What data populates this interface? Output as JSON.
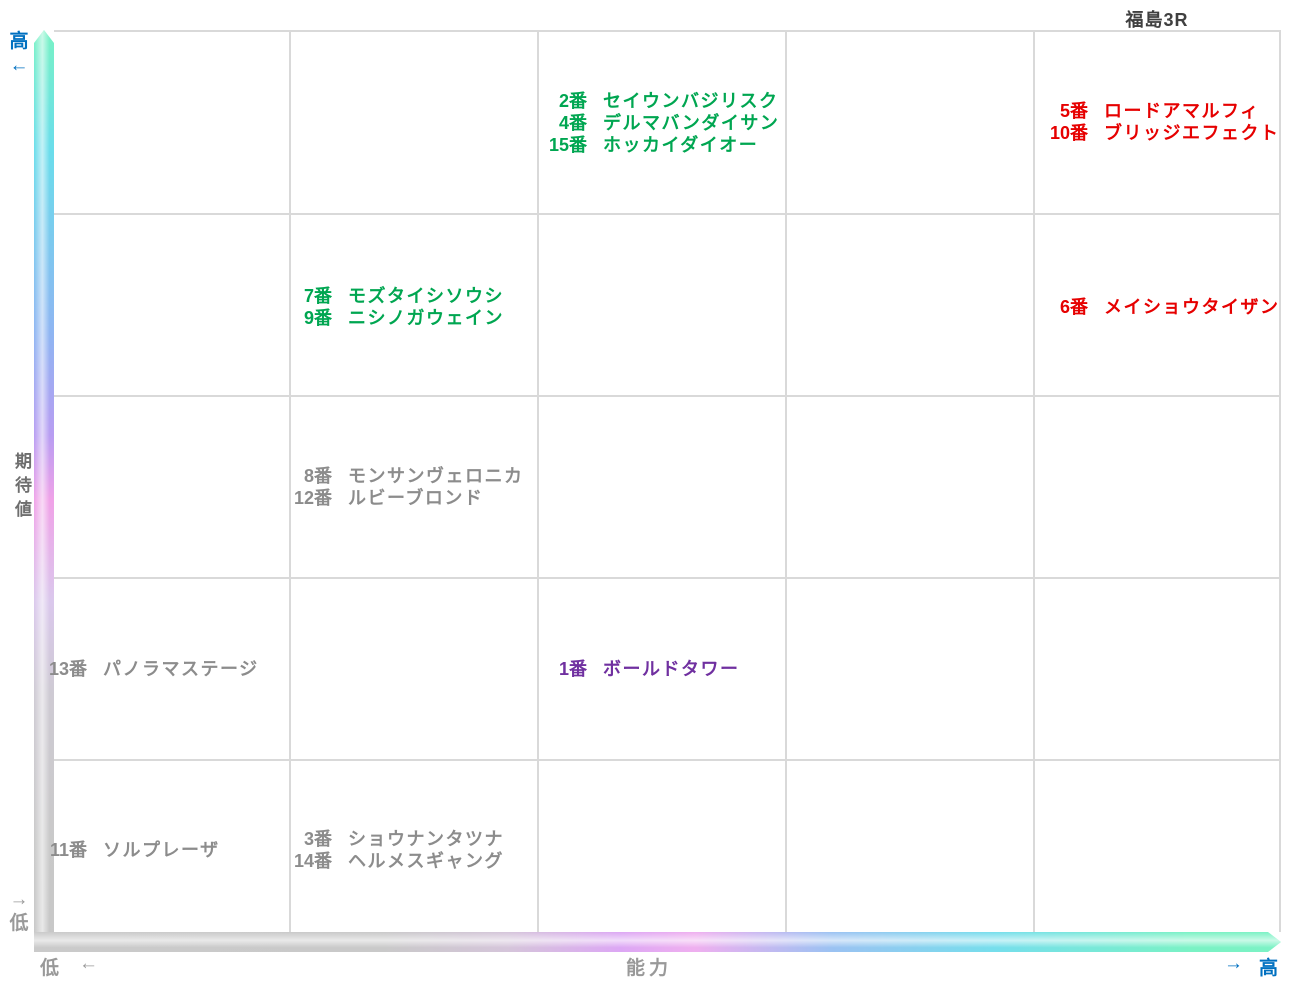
{
  "title": "福島3R",
  "axes": {
    "y": {
      "label": "期待値",
      "high_label": "高",
      "high_arrow": "←",
      "low_label": "低",
      "low_arrow": "→"
    },
    "x": {
      "label": "能力",
      "low_label": "低",
      "low_arrow": "←",
      "high_label": "高",
      "high_arrow": "→"
    }
  },
  "colors": {
    "green": "#00A651",
    "red": "#E60000",
    "purple": "#7030A0",
    "gray": "#8C8C8C",
    "axis_blue": "#0070C0",
    "axis_gray": "#999999",
    "title_gray": "#404040",
    "grid_line": "#D9D9D9"
  },
  "chart_data": {
    "type": "scatter",
    "subtype": "5x5 positioning grid (quadrant map)",
    "title": "福島3R",
    "xlabel": "能力",
    "ylabel": "期待値",
    "x_direction": "left = 低 (low), right = 高 (high)",
    "y_direction": "bottom = 低 (low), top = 高 (high)",
    "grid": {
      "columns": 5,
      "rows": 5
    },
    "groups": [
      {
        "col": 3,
        "row": 1,
        "color": "green",
        "entries": [
          {
            "num": "2番",
            "name": "セイウンバジリスク"
          },
          {
            "num": "4番",
            "name": "デルマバンダイサン"
          },
          {
            "num": "15番",
            "name": "ホッカイダイオー"
          }
        ]
      },
      {
        "col": 5,
        "row": 1,
        "color": "red",
        "entries": [
          {
            "num": "5番",
            "name": "ロードアマルフィ"
          },
          {
            "num": "10番",
            "name": "ブリッジエフェクト"
          }
        ]
      },
      {
        "col": 2,
        "row": 2,
        "color": "green",
        "entries": [
          {
            "num": "7番",
            "name": "モズタイシソウシ"
          },
          {
            "num": "9番",
            "name": "ニシノガウェイン"
          }
        ]
      },
      {
        "col": 5,
        "row": 2,
        "color": "red",
        "entries": [
          {
            "num": "6番",
            "name": "メイショウタイザン"
          }
        ]
      },
      {
        "col": 2,
        "row": 3,
        "color": "gray",
        "entries": [
          {
            "num": "8番",
            "name": "モンサンヴェロニカ"
          },
          {
            "num": "12番",
            "name": "ルビーブロンド"
          }
        ]
      },
      {
        "col": 1,
        "row": 4,
        "color": "gray",
        "entries": [
          {
            "num": "13番",
            "name": "パノラマステージ"
          }
        ]
      },
      {
        "col": 3,
        "row": 4,
        "color": "purple",
        "entries": [
          {
            "num": "1番",
            "name": "ボールドタワー"
          }
        ]
      },
      {
        "col": 1,
        "row": 5,
        "color": "gray",
        "entries": [
          {
            "num": "11番",
            "name": "ソルプレーザ"
          }
        ]
      },
      {
        "col": 2,
        "row": 5,
        "color": "gray",
        "entries": [
          {
            "num": "3番",
            "name": "ショウナンタツナ"
          },
          {
            "num": "14番",
            "name": "ヘルメスギャング"
          }
        ]
      }
    ]
  }
}
